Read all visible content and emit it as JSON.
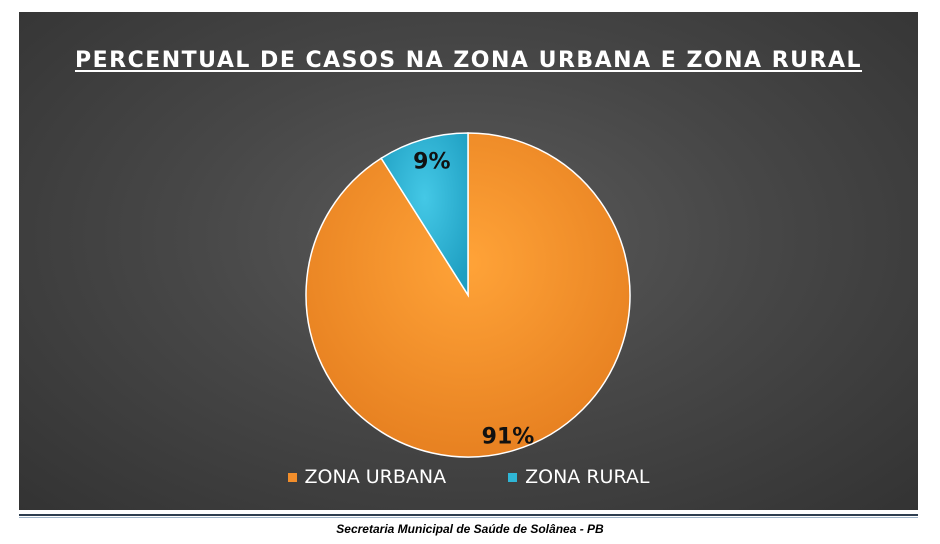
{
  "chart_data": {
    "type": "pie",
    "title": "PERCENTUAL DE CASOS NA ZONA URBANA E ZONA RURAL",
    "categories": [
      "ZONA URBANA",
      "ZONA RURAL"
    ],
    "values": [
      91,
      9
    ],
    "data_labels": [
      "91%",
      "9%"
    ],
    "colors": [
      "#f28e2b",
      "#2fb6d6"
    ],
    "legend_position": "bottom",
    "start_angle": "12 o'clock",
    "direction": "clockwise"
  },
  "footer": {
    "source": "Secretaria Municipal de Saúde de Solânea - PB"
  }
}
